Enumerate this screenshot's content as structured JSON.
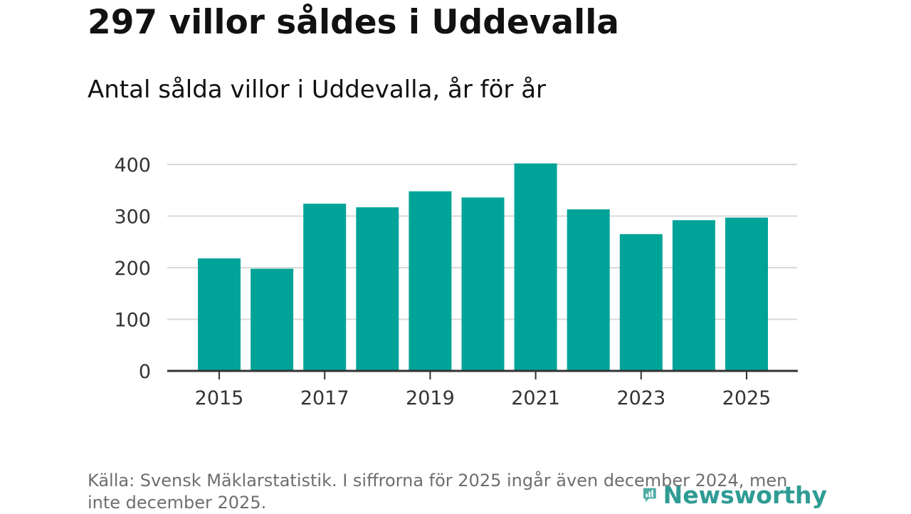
{
  "title": "297 villor såldes i Uddevalla",
  "subtitle": "Antal sålda villor i Uddevalla, år för år",
  "chart_data": {
    "type": "bar",
    "categories": [
      "2015",
      "2016",
      "2017",
      "2018",
      "2019",
      "2020",
      "2021",
      "2022",
      "2023",
      "2024",
      "2025"
    ],
    "values": [
      218,
      198,
      324,
      317,
      348,
      336,
      402,
      313,
      265,
      292,
      297
    ],
    "x_tick_labels": [
      "2015",
      "2017",
      "2019",
      "2021",
      "2023",
      "2025"
    ],
    "y_ticks": [
      0,
      100,
      200,
      300,
      400
    ],
    "ylim": [
      0,
      430
    ],
    "xlabel": "",
    "ylabel": "",
    "bar_color": "#00a398",
    "grid": true
  },
  "source": "Källa: Svensk Mäklarstatistik. I siffrorna för 2025 ingår även december 2024, men inte december 2025.",
  "logo": {
    "text": "Newsworthy",
    "color": "#2f9c94",
    "icon": "newsworthy-logo-icon"
  }
}
